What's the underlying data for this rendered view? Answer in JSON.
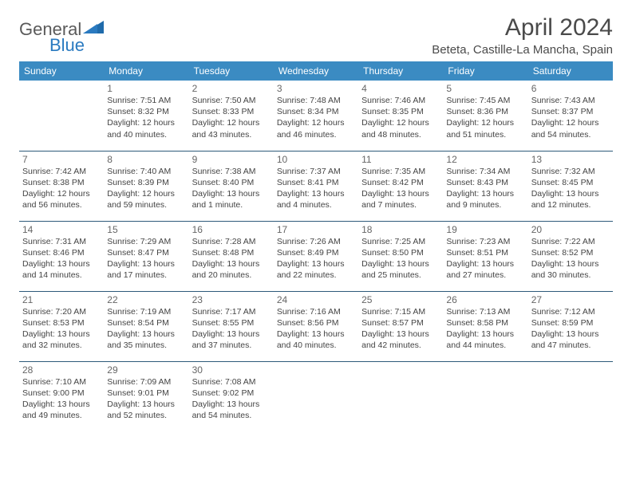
{
  "brand": {
    "text1": "General",
    "text2": "Blue",
    "icon_color": "#1f6bab"
  },
  "header": {
    "title": "April 2024",
    "location": "Beteta, Castille-La Mancha, Spain"
  },
  "colors": {
    "header_bg": "#3b8bc2",
    "header_text": "#ffffff",
    "border": "#2e5a7a",
    "text": "#444444",
    "daynum": "#666666"
  },
  "weekdays": [
    "Sunday",
    "Monday",
    "Tuesday",
    "Wednesday",
    "Thursday",
    "Friday",
    "Saturday"
  ],
  "weeks": [
    [
      null,
      {
        "n": "1",
        "sr": "Sunrise: 7:51 AM",
        "ss": "Sunset: 8:32 PM",
        "dl1": "Daylight: 12 hours",
        "dl2": "and 40 minutes."
      },
      {
        "n": "2",
        "sr": "Sunrise: 7:50 AM",
        "ss": "Sunset: 8:33 PM",
        "dl1": "Daylight: 12 hours",
        "dl2": "and 43 minutes."
      },
      {
        "n": "3",
        "sr": "Sunrise: 7:48 AM",
        "ss": "Sunset: 8:34 PM",
        "dl1": "Daylight: 12 hours",
        "dl2": "and 46 minutes."
      },
      {
        "n": "4",
        "sr": "Sunrise: 7:46 AM",
        "ss": "Sunset: 8:35 PM",
        "dl1": "Daylight: 12 hours",
        "dl2": "and 48 minutes."
      },
      {
        "n": "5",
        "sr": "Sunrise: 7:45 AM",
        "ss": "Sunset: 8:36 PM",
        "dl1": "Daylight: 12 hours",
        "dl2": "and 51 minutes."
      },
      {
        "n": "6",
        "sr": "Sunrise: 7:43 AM",
        "ss": "Sunset: 8:37 PM",
        "dl1": "Daylight: 12 hours",
        "dl2": "and 54 minutes."
      }
    ],
    [
      {
        "n": "7",
        "sr": "Sunrise: 7:42 AM",
        "ss": "Sunset: 8:38 PM",
        "dl1": "Daylight: 12 hours",
        "dl2": "and 56 minutes."
      },
      {
        "n": "8",
        "sr": "Sunrise: 7:40 AM",
        "ss": "Sunset: 8:39 PM",
        "dl1": "Daylight: 12 hours",
        "dl2": "and 59 minutes."
      },
      {
        "n": "9",
        "sr": "Sunrise: 7:38 AM",
        "ss": "Sunset: 8:40 PM",
        "dl1": "Daylight: 13 hours",
        "dl2": "and 1 minute."
      },
      {
        "n": "10",
        "sr": "Sunrise: 7:37 AM",
        "ss": "Sunset: 8:41 PM",
        "dl1": "Daylight: 13 hours",
        "dl2": "and 4 minutes."
      },
      {
        "n": "11",
        "sr": "Sunrise: 7:35 AM",
        "ss": "Sunset: 8:42 PM",
        "dl1": "Daylight: 13 hours",
        "dl2": "and 7 minutes."
      },
      {
        "n": "12",
        "sr": "Sunrise: 7:34 AM",
        "ss": "Sunset: 8:43 PM",
        "dl1": "Daylight: 13 hours",
        "dl2": "and 9 minutes."
      },
      {
        "n": "13",
        "sr": "Sunrise: 7:32 AM",
        "ss": "Sunset: 8:45 PM",
        "dl1": "Daylight: 13 hours",
        "dl2": "and 12 minutes."
      }
    ],
    [
      {
        "n": "14",
        "sr": "Sunrise: 7:31 AM",
        "ss": "Sunset: 8:46 PM",
        "dl1": "Daylight: 13 hours",
        "dl2": "and 14 minutes."
      },
      {
        "n": "15",
        "sr": "Sunrise: 7:29 AM",
        "ss": "Sunset: 8:47 PM",
        "dl1": "Daylight: 13 hours",
        "dl2": "and 17 minutes."
      },
      {
        "n": "16",
        "sr": "Sunrise: 7:28 AM",
        "ss": "Sunset: 8:48 PM",
        "dl1": "Daylight: 13 hours",
        "dl2": "and 20 minutes."
      },
      {
        "n": "17",
        "sr": "Sunrise: 7:26 AM",
        "ss": "Sunset: 8:49 PM",
        "dl1": "Daylight: 13 hours",
        "dl2": "and 22 minutes."
      },
      {
        "n": "18",
        "sr": "Sunrise: 7:25 AM",
        "ss": "Sunset: 8:50 PM",
        "dl1": "Daylight: 13 hours",
        "dl2": "and 25 minutes."
      },
      {
        "n": "19",
        "sr": "Sunrise: 7:23 AM",
        "ss": "Sunset: 8:51 PM",
        "dl1": "Daylight: 13 hours",
        "dl2": "and 27 minutes."
      },
      {
        "n": "20",
        "sr": "Sunrise: 7:22 AM",
        "ss": "Sunset: 8:52 PM",
        "dl1": "Daylight: 13 hours",
        "dl2": "and 30 minutes."
      }
    ],
    [
      {
        "n": "21",
        "sr": "Sunrise: 7:20 AM",
        "ss": "Sunset: 8:53 PM",
        "dl1": "Daylight: 13 hours",
        "dl2": "and 32 minutes."
      },
      {
        "n": "22",
        "sr": "Sunrise: 7:19 AM",
        "ss": "Sunset: 8:54 PM",
        "dl1": "Daylight: 13 hours",
        "dl2": "and 35 minutes."
      },
      {
        "n": "23",
        "sr": "Sunrise: 7:17 AM",
        "ss": "Sunset: 8:55 PM",
        "dl1": "Daylight: 13 hours",
        "dl2": "and 37 minutes."
      },
      {
        "n": "24",
        "sr": "Sunrise: 7:16 AM",
        "ss": "Sunset: 8:56 PM",
        "dl1": "Daylight: 13 hours",
        "dl2": "and 40 minutes."
      },
      {
        "n": "25",
        "sr": "Sunrise: 7:15 AM",
        "ss": "Sunset: 8:57 PM",
        "dl1": "Daylight: 13 hours",
        "dl2": "and 42 minutes."
      },
      {
        "n": "26",
        "sr": "Sunrise: 7:13 AM",
        "ss": "Sunset: 8:58 PM",
        "dl1": "Daylight: 13 hours",
        "dl2": "and 44 minutes."
      },
      {
        "n": "27",
        "sr": "Sunrise: 7:12 AM",
        "ss": "Sunset: 8:59 PM",
        "dl1": "Daylight: 13 hours",
        "dl2": "and 47 minutes."
      }
    ],
    [
      {
        "n": "28",
        "sr": "Sunrise: 7:10 AM",
        "ss": "Sunset: 9:00 PM",
        "dl1": "Daylight: 13 hours",
        "dl2": "and 49 minutes."
      },
      {
        "n": "29",
        "sr": "Sunrise: 7:09 AM",
        "ss": "Sunset: 9:01 PM",
        "dl1": "Daylight: 13 hours",
        "dl2": "and 52 minutes."
      },
      {
        "n": "30",
        "sr": "Sunrise: 7:08 AM",
        "ss": "Sunset: 9:02 PM",
        "dl1": "Daylight: 13 hours",
        "dl2": "and 54 minutes."
      },
      null,
      null,
      null,
      null
    ]
  ]
}
